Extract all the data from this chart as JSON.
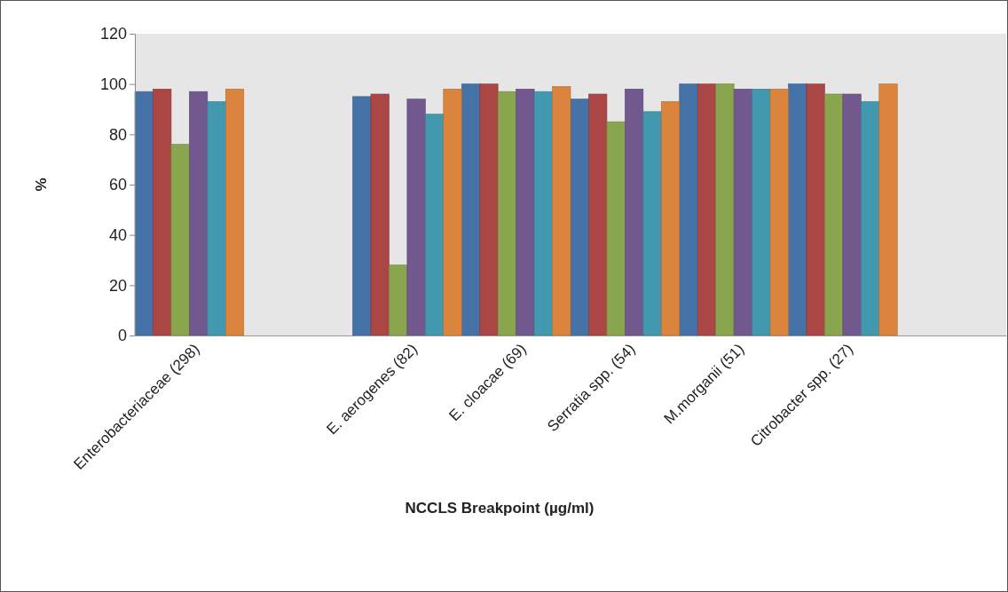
{
  "chart_data": {
    "type": "bar",
    "xlabel": "NCCLS Breakpoint (µg/ml)",
    "ylabel": "%",
    "categories": [
      "Enterobacteriaceae (298)",
      null,
      "E. aerogenes (82)",
      "E. cloacae (69)",
      "Serratia spp. (54)",
      "M.morganii (51)",
      "Citrobacter spp. (27)",
      null
    ],
    "series": [
      {
        "color": "#4572a7",
        "values": [
          97,
          null,
          95,
          100,
          94,
          100,
          100,
          null
        ]
      },
      {
        "color": "#aa4643",
        "values": [
          98,
          null,
          96,
          100,
          96,
          100,
          100,
          null
        ]
      },
      {
        "color": "#89a54e",
        "values": [
          76,
          null,
          28,
          97,
          85,
          100,
          96,
          null
        ]
      },
      {
        "color": "#71588f",
        "values": [
          97,
          null,
          94,
          98,
          98,
          98,
          96,
          null
        ]
      },
      {
        "color": "#4198af",
        "values": [
          93,
          null,
          88,
          97,
          89,
          98,
          93,
          null
        ]
      },
      {
        "color": "#db843d",
        "values": [
          98,
          null,
          98,
          99,
          93,
          98,
          100,
          null
        ]
      }
    ],
    "ylim": [
      0,
      120
    ],
    "yticks": [
      0,
      20,
      40,
      60,
      80,
      100,
      120
    ],
    "grid": false,
    "legend": false
  }
}
